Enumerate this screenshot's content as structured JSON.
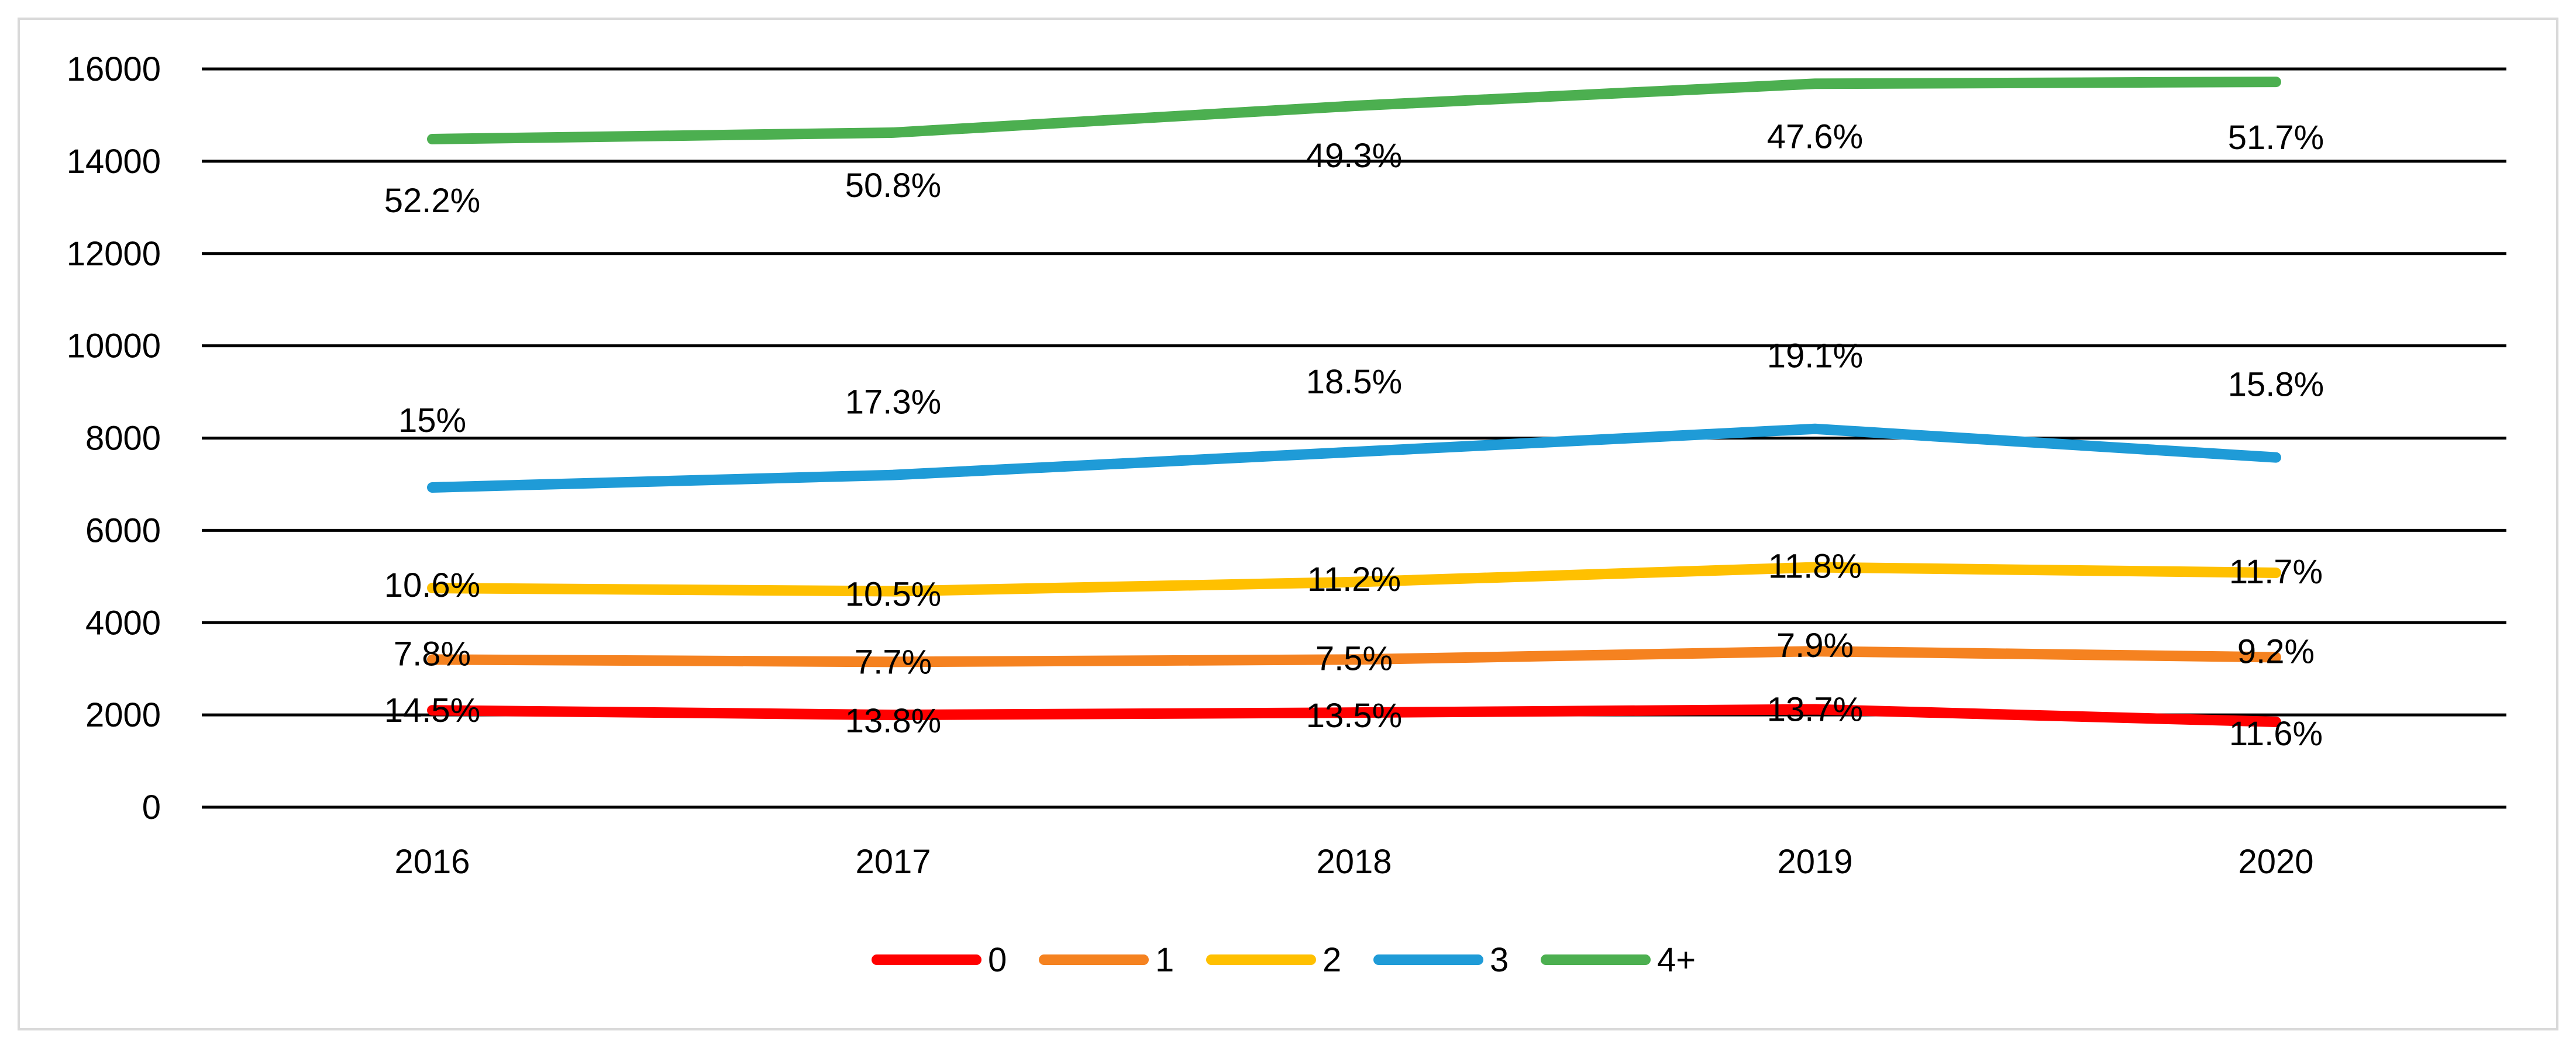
{
  "chart_data": {
    "type": "line",
    "title": "",
    "xlabel": "",
    "ylabel": "",
    "categories": [
      "2016",
      "2017",
      "2018",
      "2019",
      "2020"
    ],
    "ylim": [
      0,
      16000
    ],
    "yticks": [
      0,
      2000,
      4000,
      6000,
      8000,
      10000,
      12000,
      14000,
      16000
    ],
    "yticklabels": [
      "0",
      "2000",
      "4000",
      "6000",
      "8000",
      "10000",
      "12000",
      "14000",
      "16000"
    ],
    "grid": true,
    "legend_position": "bottom",
    "series": [
      {
        "name": "0",
        "color": "#ff0000",
        "values": [
          2100,
          2000,
          2050,
          2120,
          1850
        ],
        "labels": [
          "14.5%",
          "13.8%",
          "13.5%",
          "13.7%",
          "11.6%"
        ]
      },
      {
        "name": "1",
        "color": "#f58220",
        "values": [
          3200,
          3150,
          3200,
          3380,
          3250
        ],
        "labels": [
          "7.8%",
          "7.7%",
          "7.5%",
          "7.9%",
          "9.2%"
        ]
      },
      {
        "name": "2",
        "color": "#ffc000",
        "values": [
          4750,
          4680,
          4880,
          5200,
          5080
        ],
        "labels": [
          "10.6%",
          "10.5%",
          "11.2%",
          "11.8%",
          "11.7%"
        ]
      },
      {
        "name": "3",
        "color": "#1f9bd7",
        "values": [
          6930,
          7200,
          7700,
          8200,
          7580
        ],
        "labels": [
          "15%",
          "17.3%",
          "18.5%",
          "19.1%",
          "15.8%"
        ]
      },
      {
        "name": "4+",
        "color": "#4caf50",
        "values": [
          14480,
          14620,
          15200,
          15680,
          15720
        ],
        "labels": [
          "52.2%",
          "50.8%",
          "49.3%",
          "47.6%",
          "51.7%"
        ]
      }
    ]
  }
}
